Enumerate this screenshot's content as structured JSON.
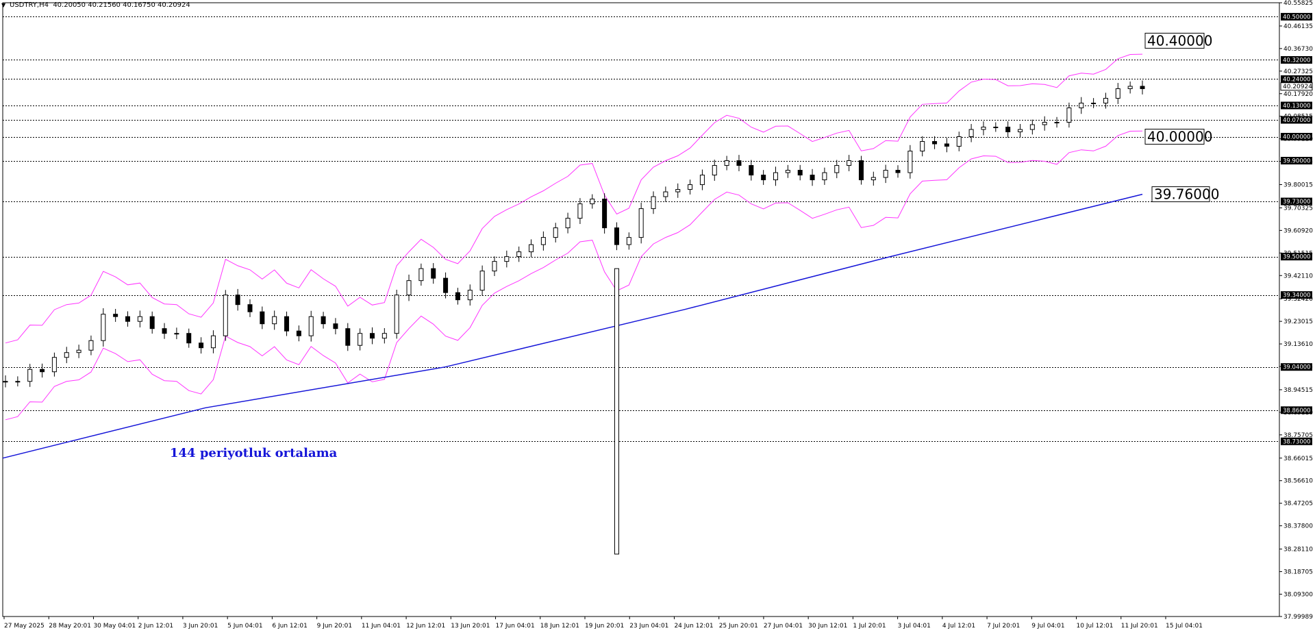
{
  "header": {
    "symbol": "USDTRY,H4",
    "ohlc": "40.20050 40.21560 40.16750 40.20924"
  },
  "colors": {
    "candle": "#000000",
    "bollinger": "#ff33ff",
    "ma": "#1515d8",
    "grid": "#000000"
  },
  "chart_data": {
    "type": "candlestick",
    "ylim": [
      37.99989,
      40.55825
    ],
    "price_ticks": [
      "40.55825",
      "40.46135",
      "40.36730",
      "40.27325",
      "40.17920",
      "40.08515",
      "39.99110",
      "39.89705",
      "39.80015",
      "39.70325",
      "39.60920",
      "39.51515",
      "39.42110",
      "39.32420",
      "39.23015",
      "39.13610",
      "39.04205",
      "38.94515",
      "38.85110",
      "38.75705",
      "38.66015",
      "38.56610",
      "38.47205",
      "38.37800",
      "38.28110",
      "38.18705",
      "38.09300",
      "37.99989"
    ],
    "x_labels": [
      "27 May 2025",
      "28 May 20:01",
      "30 May 04:01",
      "2 Jun 12:01",
      "3 Jun 20:01",
      "5 Jun 04:01",
      "6 Jun 12:01",
      "9 Jun 20:01",
      "11 Jun 04:01",
      "12 Jun 12:01",
      "13 Jun 20:01",
      "17 Jun 04:01",
      "18 Jun 12:01",
      "19 Jun 20:01",
      "23 Jun 04:01",
      "24 Jun 12:01",
      "25 Jun 20:01",
      "27 Jun 04:01",
      "30 Jun 12:01",
      "1 Jul 20:01",
      "3 Jul 04:01",
      "4 Jul 12:01",
      "7 Jul 20:01",
      "9 Jul 04:01",
      "10 Jul 12:01",
      "11 Jul 20:01",
      "15 Jul 04:01"
    ],
    "horizontal_levels": [
      "40.50000",
      "40.32000",
      "40.24000",
      "40.13000",
      "40.07000",
      "40.00000",
      "39.90000",
      "39.73000",
      "39.50000",
      "39.34000",
      "39.04000",
      "38.86000",
      "38.73000"
    ],
    "current_price": "40.20924",
    "callouts": [
      "40.40000",
      "40.00000",
      "39.76000"
    ],
    "annotation": "144 periyotluk ortalama",
    "candles_close_path": [
      [
        0,
        38.98
      ],
      [
        10,
        38.98
      ],
      [
        20,
        39.03
      ],
      [
        30,
        39.02
      ],
      [
        40,
        39.08
      ],
      [
        50,
        39.1
      ],
      [
        60,
        39.11
      ],
      [
        70,
        39.15
      ],
      [
        80,
        39.26
      ],
      [
        90,
        39.25
      ],
      [
        100,
        39.23
      ],
      [
        110,
        39.25
      ],
      [
        120,
        39.2
      ],
      [
        130,
        39.18
      ],
      [
        140,
        39.18
      ],
      [
        150,
        39.14
      ],
      [
        160,
        39.12
      ],
      [
        170,
        39.17
      ],
      [
        180,
        39.34
      ],
      [
        190,
        39.3
      ],
      [
        200,
        39.27
      ],
      [
        210,
        39.22
      ],
      [
        220,
        39.25
      ],
      [
        230,
        39.19
      ],
      [
        240,
        39.17
      ],
      [
        250,
        39.25
      ],
      [
        260,
        39.22
      ],
      [
        270,
        39.2
      ],
      [
        280,
        39.13
      ],
      [
        290,
        39.18
      ],
      [
        300,
        39.16
      ],
      [
        310,
        39.18
      ],
      [
        320,
        39.34
      ],
      [
        330,
        39.4
      ],
      [
        340,
        39.45
      ],
      [
        350,
        39.41
      ],
      [
        360,
        39.35
      ],
      [
        370,
        39.32
      ],
      [
        380,
        39.36
      ],
      [
        390,
        39.44
      ],
      [
        400,
        39.48
      ],
      [
        410,
        39.5
      ],
      [
        420,
        39.52
      ],
      [
        430,
        39.55
      ],
      [
        440,
        39.58
      ],
      [
        450,
        39.62
      ],
      [
        460,
        39.66
      ],
      [
        470,
        39.72
      ],
      [
        480,
        39.74
      ],
      [
        490,
        39.62
      ],
      [
        500,
        39.55
      ],
      [
        510,
        39.58
      ],
      [
        520,
        39.7
      ],
      [
        530,
        39.75
      ],
      [
        540,
        39.77
      ],
      [
        550,
        39.78
      ],
      [
        560,
        39.8
      ],
      [
        570,
        39.84
      ],
      [
        580,
        39.88
      ],
      [
        590,
        39.9
      ],
      [
        600,
        39.88
      ],
      [
        610,
        39.84
      ],
      [
        620,
        39.82
      ],
      [
        630,
        39.85
      ],
      [
        640,
        39.86
      ],
      [
        650,
        39.84
      ],
      [
        660,
        39.82
      ],
      [
        670,
        39.85
      ],
      [
        680,
        39.88
      ],
      [
        690,
        39.9
      ],
      [
        700,
        39.82
      ],
      [
        710,
        39.83
      ],
      [
        720,
        39.86
      ],
      [
        730,
        39.85
      ],
      [
        740,
        39.94
      ],
      [
        750,
        39.98
      ],
      [
        760,
        39.97
      ],
      [
        770,
        39.96
      ],
      [
        780,
        40.0
      ],
      [
        790,
        40.03
      ],
      [
        800,
        40.04
      ],
      [
        810,
        40.04
      ],
      [
        820,
        40.02
      ],
      [
        830,
        40.03
      ],
      [
        840,
        40.05
      ],
      [
        850,
        40.06
      ],
      [
        860,
        40.06
      ],
      [
        870,
        40.12
      ],
      [
        880,
        40.14
      ],
      [
        890,
        40.14
      ],
      [
        900,
        40.16
      ],
      [
        910,
        40.2
      ],
      [
        920,
        40.21
      ],
      [
        930,
        40.2
      ]
    ]
  }
}
